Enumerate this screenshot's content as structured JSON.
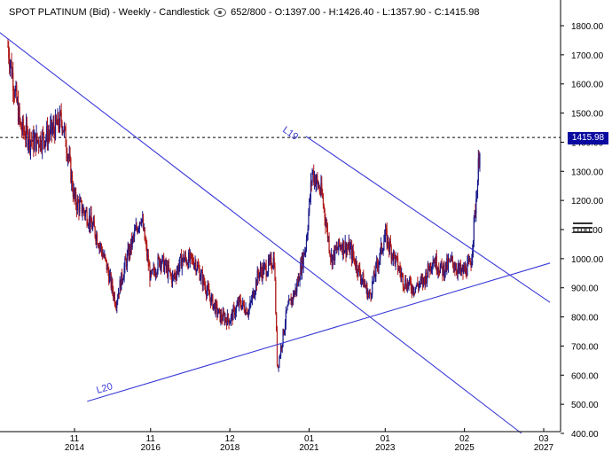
{
  "header": {
    "title": "SPOT PLATINUM (Bid) - Weekly - Candlestick",
    "bars": "652/800",
    "open": "O:1397.00",
    "high": "H:1426.40",
    "low": "L:1357.90",
    "close": "C:1415.98"
  },
  "price_tag": "1415.98",
  "colors": {
    "up": "#1a1a8c",
    "down": "#b01818",
    "trendline": "#3a3ad8",
    "axis": "#000000"
  },
  "chart_data": {
    "type": "candlestick",
    "y_axis": {
      "min": 400,
      "max": 1850,
      "position": "right",
      "ticks": [
        400,
        500,
        600,
        700,
        800,
        900,
        1000,
        1100,
        1200,
        1300,
        1400,
        1500,
        1600,
        1700,
        1800
      ],
      "tick_labels": [
        "400.00",
        "500.00",
        "600.00",
        "700.00",
        "800.00",
        "900.00",
        "1000.00",
        "1100.00",
        "1200.00",
        "1300.00",
        "1400.00",
        "1500.00",
        "1600.00",
        "1700.00",
        "1800.00"
      ]
    },
    "x_axis": {
      "ticks": [
        {
          "month": "11",
          "year": "2014",
          "date": "2014-11"
        },
        {
          "month": "11",
          "year": "2016",
          "date": "2016-11"
        },
        {
          "month": "12",
          "year": "2018",
          "date": "2018-12"
        },
        {
          "month": "01",
          "year": "2021",
          "date": "2021-01"
        },
        {
          "month": "01",
          "year": "2023",
          "date": "2023-01"
        },
        {
          "month": "02",
          "year": "2025",
          "date": "2025-02"
        },
        {
          "month": "03",
          "year": "2027",
          "date": "2027-03"
        }
      ]
    },
    "last_price": 1415.98,
    "approx_path": [
      [
        "2013-02",
        1730
      ],
      [
        "2013-06",
        1450
      ],
      [
        "2013-10",
        1400
      ],
      [
        "2014-02",
        1420
      ],
      [
        "2014-05",
        1450
      ],
      [
        "2014-07",
        1480
      ],
      [
        "2014-09",
        1360
      ],
      [
        "2014-11",
        1200
      ],
      [
        "2015-03",
        1150
      ],
      [
        "2015-06",
        1080
      ],
      [
        "2015-09",
        980
      ],
      [
        "2015-12",
        850
      ],
      [
        "2016-03",
        980
      ],
      [
        "2016-05",
        1050
      ],
      [
        "2016-08",
        1150
      ],
      [
        "2016-11",
        930
      ],
      [
        "2017-02",
        1000
      ],
      [
        "2017-06",
        930
      ],
      [
        "2017-09",
        1000
      ],
      [
        "2018-01",
        990
      ],
      [
        "2018-06",
        860
      ],
      [
        "2018-09",
        800
      ],
      [
        "2018-12",
        790
      ],
      [
        "2019-03",
        850
      ],
      [
        "2019-06",
        820
      ],
      [
        "2019-09",
        950
      ],
      [
        "2019-12",
        970
      ],
      [
        "2020-02",
        1000
      ],
      [
        "2020-03",
        620
      ],
      [
        "2020-06",
        820
      ],
      [
        "2020-09",
        900
      ],
      [
        "2020-12",
        1050
      ],
      [
        "2021-02",
        1300
      ],
      [
        "2021-05",
        1220
      ],
      [
        "2021-08",
        1000
      ],
      [
        "2021-11",
        1050
      ],
      [
        "2022-02",
        1030
      ],
      [
        "2022-05",
        950
      ],
      [
        "2022-08",
        870
      ],
      [
        "2022-11",
        1000
      ],
      [
        "2023-01",
        1080
      ],
      [
        "2023-04",
        1000
      ],
      [
        "2023-07",
        920
      ],
      [
        "2023-10",
        900
      ],
      [
        "2024-01",
        920
      ],
      [
        "2024-04",
        1000
      ],
      [
        "2024-07",
        960
      ],
      [
        "2024-10",
        990
      ],
      [
        "2025-01",
        950
      ],
      [
        "2025-04",
        980
      ],
      [
        "2025-06",
        1250
      ],
      [
        "2025-07",
        1415.98
      ]
    ],
    "trendlines": [
      {
        "label": "",
        "p1": [
          "2012-11",
          1780
        ],
        "p2": [
          "2026-08",
          400
        ]
      },
      {
        "label": "L19",
        "p1": [
          "2020-12",
          1420
        ],
        "p2": [
          "2027-05",
          850
        ]
      },
      {
        "label": "L20",
        "p1": [
          "2015-03",
          510
        ],
        "p2": [
          "2027-05",
          985
        ]
      }
    ]
  }
}
